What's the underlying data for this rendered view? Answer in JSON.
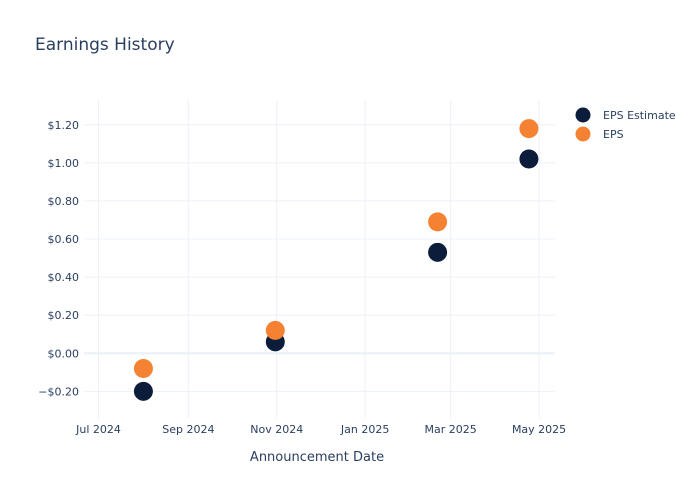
{
  "chart_data": {
    "type": "scatter",
    "title": "Earnings History",
    "xlabel": "Announcement Date",
    "ylabel": "",
    "x_tick_labels": [
      "Jul 2024",
      "Sep 2024",
      "Nov 2024",
      "Jan 2025",
      "Mar 2025",
      "May 2025"
    ],
    "x_tick_dates": [
      "2024-07-01",
      "2024-09-01",
      "2024-11-01",
      "2025-01-01",
      "2025-03-01",
      "2025-05-01"
    ],
    "xlim": [
      "2024-06-21",
      "2025-05-12"
    ],
    "y_tick_labels": [
      "−$0.20",
      "$0.00",
      "$0.20",
      "$0.40",
      "$0.60",
      "$0.80",
      "$1.00",
      "$1.20"
    ],
    "y_tick_values": [
      -0.2,
      0,
      0.2,
      0.4,
      0.6,
      0.8,
      1.0,
      1.2
    ],
    "ylim": [
      -0.34,
      1.33
    ],
    "grid": true,
    "legend_position": "top-right",
    "x": [
      "2024-08-01",
      "2024-10-31",
      "2025-02-20",
      "2025-04-24"
    ],
    "series": [
      {
        "name": "EPS Estimate",
        "color": "#0b1d3a",
        "values": [
          -0.2,
          0.06,
          0.53,
          1.02
        ]
      },
      {
        "name": "EPS",
        "color": "#f58233",
        "values": [
          -0.08,
          0.12,
          0.69,
          1.18
        ]
      }
    ]
  }
}
